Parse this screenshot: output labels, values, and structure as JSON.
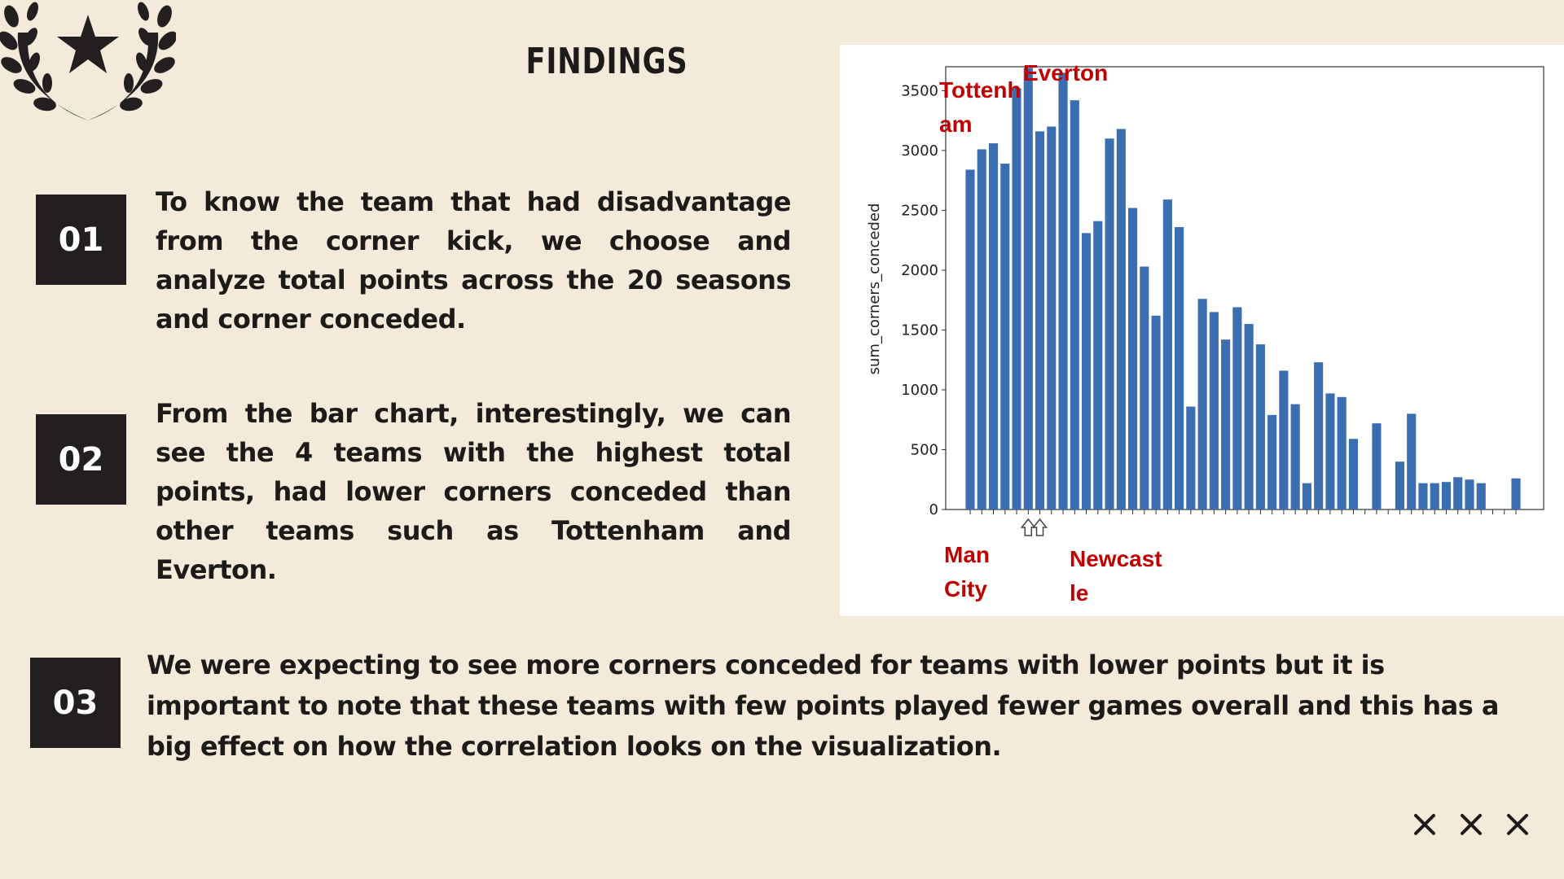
{
  "slide": {
    "title": "FINDINGS"
  },
  "findings": [
    {
      "number": "01",
      "text": "To know the team that had disadvantage from the corner kick, we choose and analyze total points across the 20 seasons and corner conceded."
    },
    {
      "number": "02",
      "text": "From the bar chart, interestingly, we can see the 4 teams with the highest total points, had lower corners conceded than other teams such as Tottenham and Everton."
    },
    {
      "number": "03",
      "text": "We were expecting to see more corners conceded for teams with lower points but it is important to note that these teams with few points played fewer games overall and this has a big effect on how the correlation looks on the visualization."
    }
  ],
  "icons": {
    "emblem": "laurel-star-icon",
    "close_marks": [
      "close-icon",
      "close-icon",
      "close-icon"
    ]
  },
  "colors": {
    "background": "#f3ead9",
    "dark": "#231f20",
    "bar": "#3a6eb0",
    "annotation": "#c00000"
  },
  "chart_data": {
    "type": "bar",
    "ylabel": "sum_corners_conceded",
    "ylim": [
      0,
      3700
    ],
    "yticks": [
      0,
      500,
      1000,
      1500,
      2000,
      2500,
      3000,
      3500
    ],
    "values": [
      2840,
      3010,
      3060,
      2890,
      3520,
      3690,
      3160,
      3200,
      3650,
      3420,
      2310,
      2410,
      3100,
      3180,
      2520,
      2030,
      1620,
      2590,
      2360,
      860,
      1760,
      1650,
      1420,
      1690,
      1550,
      1380,
      790,
      1160,
      880,
      220,
      1230,
      970,
      940,
      590,
      0,
      720,
      0,
      400,
      800,
      220,
      220,
      230,
      270,
      250,
      220,
      0,
      0,
      260
    ],
    "annotations": [
      {
        "label": "Tottenh\nam",
        "index": 5
      },
      {
        "label": "Everton",
        "index": 8
      },
      {
        "label": "Man\nCity",
        "index": 5
      },
      {
        "label": "Newcast\nle",
        "index": 7
      }
    ]
  }
}
